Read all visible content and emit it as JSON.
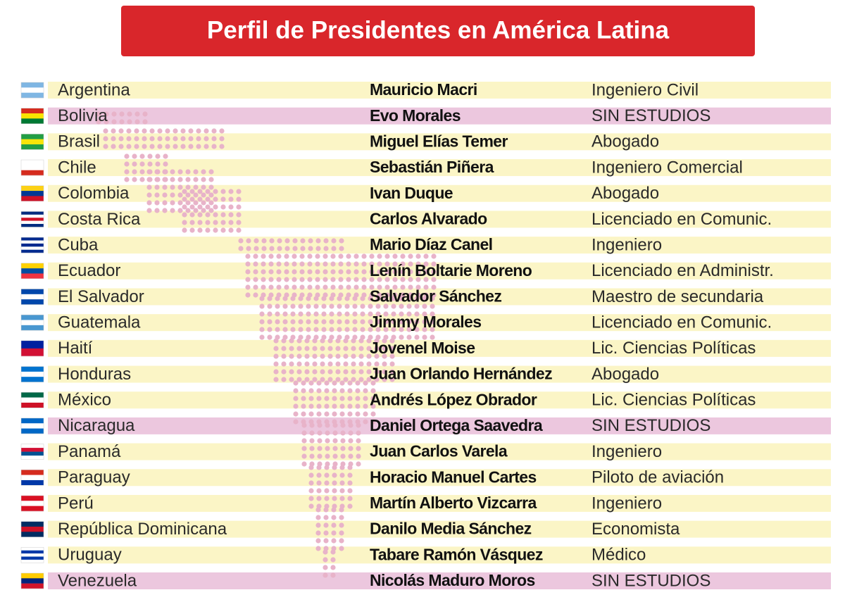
{
  "header": {
    "title": "Perfil de Presidentes en América Latina"
  },
  "table": {
    "rows": [
      [
        "Argentina",
        "Mauricio Macri",
        "Ingeniero Civil"
      ],
      [
        "Bolivia",
        "Evo Morales",
        "SIN ESTUDIOS"
      ],
      [
        "Brasil",
        "Miguel Elías Temer",
        "Abogado"
      ],
      [
        "Chile",
        "Sebastián Piñera",
        "Ingeniero Comercial"
      ],
      [
        "Colombia",
        "Ivan Duque",
        "Abogado"
      ],
      [
        "Costa Rica",
        "Carlos Alvarado",
        "Licenciado en Comunic."
      ],
      [
        "Cuba",
        "Mario Díaz Canel",
        "Ingeniero"
      ],
      [
        "Ecuador",
        "Lenín Boltarie Moreno",
        "Licenciado en Administr."
      ],
      [
        "El Salvador",
        "Salvador Sánchez",
        "Maestro de secundaria"
      ],
      [
        "Guatemala",
        "Jimmy Morales",
        "Licenciado en Comunic."
      ],
      [
        "Haití",
        "Jovenel Moise",
        "Lic. Ciencias Políticas"
      ],
      [
        "Honduras",
        "Juan Orlando Hernández",
        "Abogado"
      ],
      [
        "México",
        "Andrés López Obrador",
        "Lic. Ciencias Políticas"
      ],
      [
        "Nicaragua",
        "Daniel Ortega Saavedra",
        "SIN ESTUDIOS"
      ],
      [
        "Panamá",
        "Juan Carlos Varela",
        "Ingeniero"
      ],
      [
        "Paraguay",
        "Horacio Manuel Cartes",
        "Piloto de aviación"
      ],
      [
        "Perú",
        "Martín Alberto Vizcarra",
        "Ingeniero"
      ],
      [
        "República Dominicana",
        "Danilo Media Sánchez",
        "Economista"
      ],
      [
        "Uruguay",
        "Tabare Ramón Vásquez",
        "Médico"
      ],
      [
        "Venezuela",
        "Nicolás Maduro Moros",
        "SIN ESTUDIOS"
      ]
    ]
  }
}
